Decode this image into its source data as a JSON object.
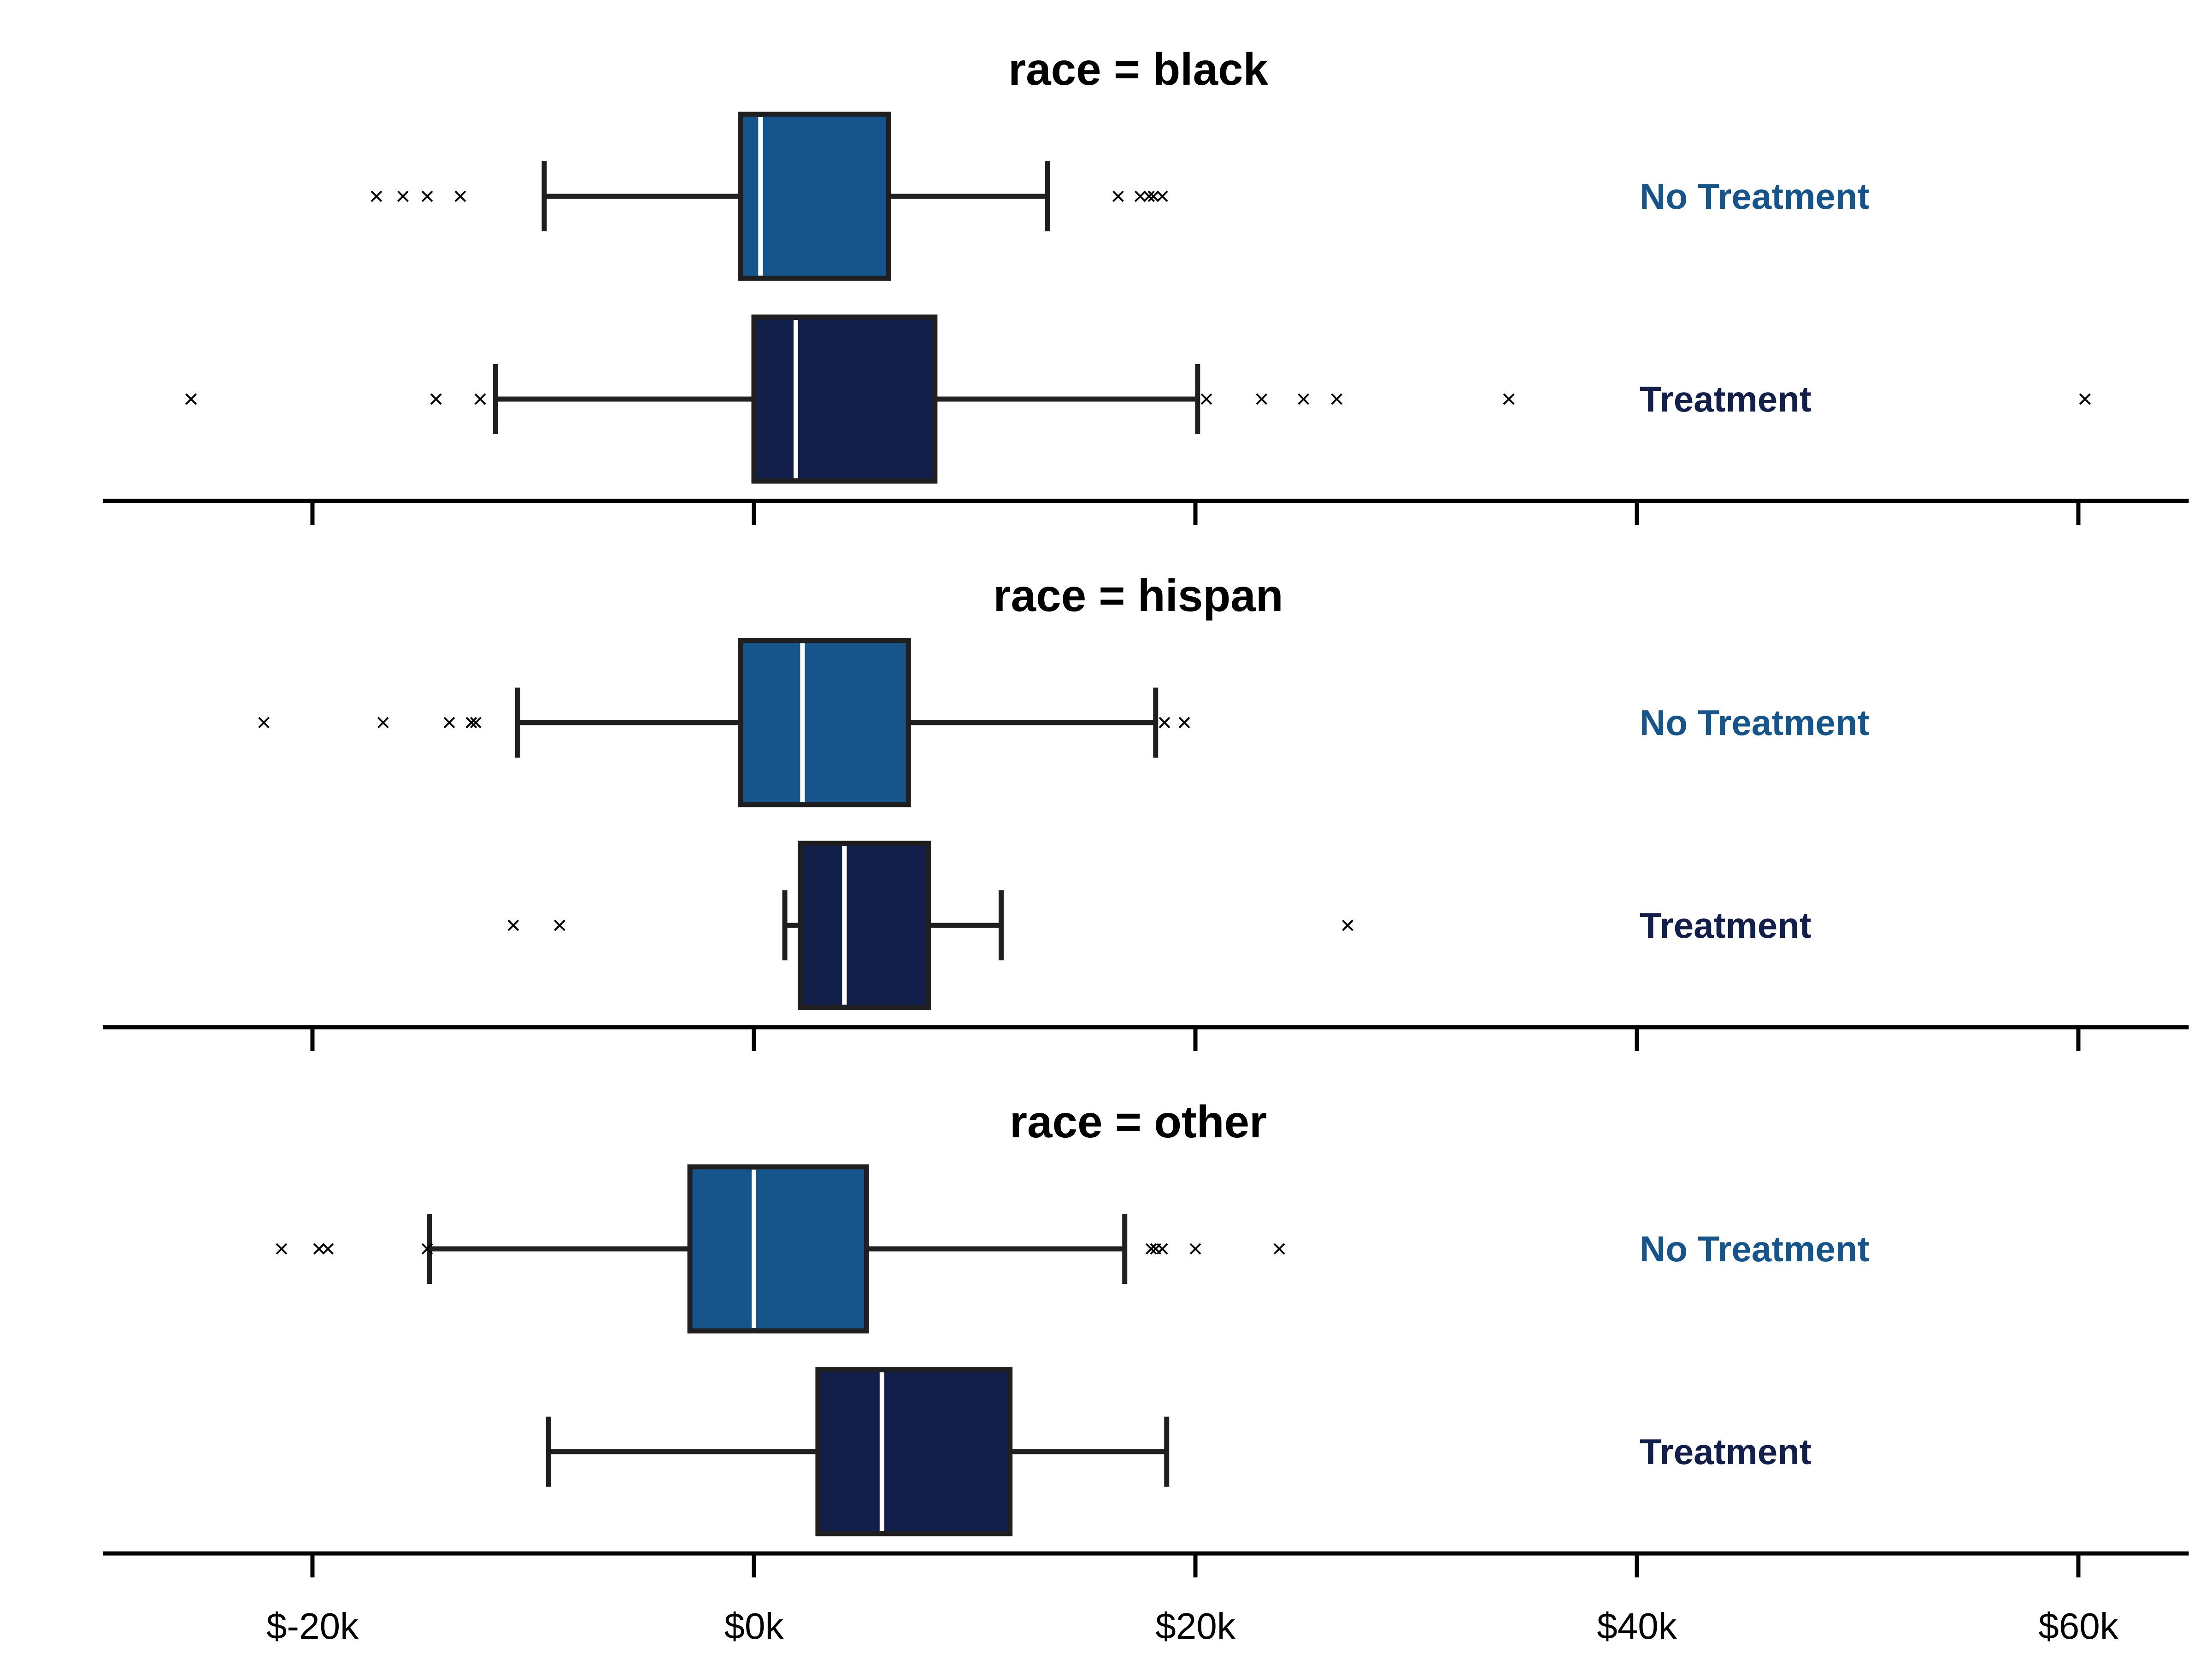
{
  "colors": {
    "no_treatment": "#16548c",
    "treatment": "#121f4b",
    "outline": "#1f1f1f",
    "median": "#ffffff",
    "axis": "#000000"
  },
  "chart_data": {
    "type": "boxplot",
    "orientation": "horizontal",
    "xlim": [
      -29500,
      65000
    ],
    "x_ticks": [
      -20000,
      0,
      20000,
      40000,
      60000
    ],
    "x_tick_labels": [
      "$-20k",
      "$0k",
      "$20k",
      "$40k",
      "$60k"
    ],
    "grid": false,
    "outlier_marker": "x",
    "panels": [
      {
        "title": "race = black",
        "groups": [
          {
            "label": "No Treatment",
            "color_key": "no_treatment",
            "whisker_low": -9500,
            "q1": -600,
            "median": 300,
            "q3": 6100,
            "whisker_high": 13300,
            "outliers": [
              -17100,
              -15900,
              -14800,
              -13300,
              16500,
              17500,
              17900,
              18100,
              18500
            ]
          },
          {
            "label": "Treatment",
            "color_key": "treatment",
            "whisker_low": -11700,
            "q1": 0,
            "median": 1900,
            "q3": 8200,
            "whisker_high": 20100,
            "outliers": [
              -25500,
              -14400,
              -12400,
              20500,
              23000,
              24900,
              26400,
              34200,
              60300
            ]
          }
        ]
      },
      {
        "title": "race = hispan",
        "groups": [
          {
            "label": "No Treatment",
            "color_key": "no_treatment",
            "whisker_low": -10700,
            "q1": -600,
            "median": 2200,
            "q3": 7000,
            "whisker_high": 18200,
            "outliers": [
              -22200,
              -16800,
              -13800,
              -12800,
              -12600,
              18600,
              19500
            ]
          },
          {
            "label": "Treatment",
            "color_key": "treatment",
            "whisker_low": 1400,
            "q1": 2100,
            "median": 4100,
            "q3": 7900,
            "whisker_high": 11200,
            "outliers": [
              -10900,
              -8800,
              26900
            ]
          }
        ]
      },
      {
        "title": "race = other",
        "groups": [
          {
            "label": "No Treatment",
            "color_key": "no_treatment",
            "whisker_low": -14700,
            "q1": -2900,
            "median": 0,
            "q3": 5100,
            "whisker_high": 16800,
            "outliers": [
              -21400,
              -19700,
              -19300,
              -14800,
              18000,
              18200,
              18500,
              20000,
              23800
            ]
          },
          {
            "label": "Treatment",
            "color_key": "treatment",
            "whisker_low": -9300,
            "q1": 2900,
            "median": 5800,
            "q3": 11600,
            "whisker_high": 18700,
            "outliers": []
          }
        ]
      }
    ]
  }
}
